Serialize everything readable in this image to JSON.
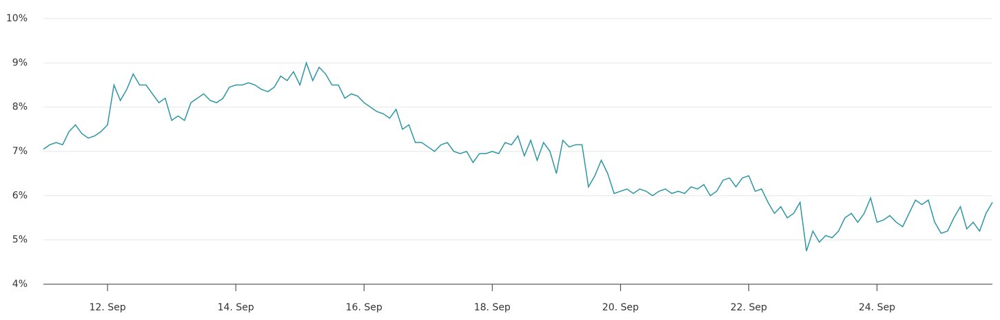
{
  "chart_data": {
    "type": "line",
    "x": [
      11.0,
      11.1,
      11.2,
      11.3,
      11.4,
      11.5,
      11.6,
      11.7,
      11.8,
      11.9,
      12.0,
      12.1,
      12.2,
      12.3,
      12.4,
      12.5,
      12.6,
      12.7,
      12.8,
      12.9,
      13.0,
      13.1,
      13.2,
      13.3,
      13.4,
      13.5,
      13.6,
      13.7,
      13.8,
      13.9,
      14.0,
      14.1,
      14.2,
      14.3,
      14.4,
      14.5,
      14.6,
      14.7,
      14.8,
      14.9,
      15.0,
      15.1,
      15.2,
      15.3,
      15.4,
      15.5,
      15.6,
      15.7,
      15.8,
      15.9,
      16.0,
      16.1,
      16.2,
      16.3,
      16.4,
      16.5,
      16.6,
      16.7,
      16.8,
      16.9,
      17.0,
      17.1,
      17.2,
      17.3,
      17.4,
      17.5,
      17.6,
      17.7,
      17.8,
      17.9,
      18.0,
      18.1,
      18.2,
      18.3,
      18.4,
      18.5,
      18.6,
      18.7,
      18.8,
      18.9,
      19.0,
      19.1,
      19.2,
      19.3,
      19.4,
      19.5,
      19.6,
      19.7,
      19.8,
      19.9,
      20.0,
      20.1,
      20.2,
      20.3,
      20.4,
      20.5,
      20.6,
      20.7,
      20.8,
      20.9,
      21.0,
      21.1,
      21.2,
      21.3,
      21.4,
      21.5,
      21.6,
      21.7,
      21.8,
      21.9,
      22.0,
      22.1,
      22.2,
      22.3,
      22.4,
      22.5,
      22.6,
      22.7,
      22.8,
      22.9,
      23.0,
      23.1,
      23.2,
      23.3,
      23.4,
      23.5,
      23.6,
      23.7,
      23.8,
      23.9,
      24.0,
      24.1,
      24.2,
      24.3,
      24.4,
      24.5,
      24.6,
      24.7,
      24.8,
      24.9,
      25.0,
      25.1,
      25.2,
      25.3,
      25.4,
      25.5,
      25.6,
      25.7,
      25.8
    ],
    "series": [
      {
        "color": "#2b95a3",
        "values": [
          7.05,
          7.15,
          7.2,
          7.15,
          7.45,
          7.6,
          7.4,
          7.3,
          7.35,
          7.45,
          7.6,
          8.5,
          8.15,
          8.4,
          8.75,
          8.5,
          8.5,
          8.3,
          8.1,
          8.2,
          7.7,
          7.8,
          7.7,
          8.1,
          8.2,
          8.3,
          8.15,
          8.1,
          8.2,
          8.45,
          8.5,
          8.5,
          8.55,
          8.5,
          8.4,
          8.35,
          8.45,
          8.7,
          8.6,
          8.8,
          8.5,
          9.0,
          8.6,
          8.9,
          8.75,
          8.5,
          8.5,
          8.2,
          8.3,
          8.25,
          8.1,
          8.0,
          7.9,
          7.85,
          7.75,
          7.95,
          7.5,
          7.6,
          7.2,
          7.2,
          7.1,
          7.0,
          7.15,
          7.2,
          7.0,
          6.95,
          7.0,
          6.75,
          6.95,
          6.95,
          7.0,
          6.95,
          7.2,
          7.15,
          7.35,
          6.9,
          7.25,
          6.8,
          7.2,
          7.0,
          6.5,
          7.25,
          7.1,
          7.15,
          7.15,
          6.2,
          6.45,
          6.8,
          6.5,
          6.05,
          6.1,
          6.15,
          6.05,
          6.15,
          6.1,
          6.0,
          6.1,
          6.15,
          6.05,
          6.1,
          6.05,
          6.2,
          6.15,
          6.25,
          6.0,
          6.1,
          6.35,
          6.4,
          6.2,
          6.4,
          6.45,
          6.1,
          6.15,
          5.85,
          5.6,
          5.75,
          5.5,
          5.6,
          5.85,
          4.75,
          5.2,
          4.95,
          5.1,
          5.05,
          5.2,
          5.5,
          5.6,
          5.4,
          5.6,
          5.95,
          5.4,
          5.45,
          5.55,
          5.4,
          5.3,
          5.6,
          5.9,
          5.8,
          5.9,
          5.4,
          5.15,
          5.2,
          5.5,
          5.75,
          5.25,
          5.4,
          5.2,
          5.6,
          5.85
        ]
      }
    ],
    "xlim": [
      11,
      25.8
    ],
    "xticks": [
      {
        "value": 12,
        "label": "12. Sep"
      },
      {
        "value": 14,
        "label": "14. Sep"
      },
      {
        "value": 16,
        "label": "16. Sep"
      },
      {
        "value": 18,
        "label": "18. Sep"
      },
      {
        "value": 20,
        "label": "20. Sep"
      },
      {
        "value": 22,
        "label": "22. Sep"
      },
      {
        "value": 24,
        "label": "24. Sep"
      }
    ],
    "ylim": [
      4,
      10
    ],
    "yticks": [
      {
        "value": 4,
        "label": "4%"
      },
      {
        "value": 5,
        "label": "5%"
      },
      {
        "value": 6,
        "label": "6%"
      },
      {
        "value": 7,
        "label": "7%"
      },
      {
        "value": 8,
        "label": "8%"
      },
      {
        "value": 9,
        "label": "9%"
      },
      {
        "value": 10,
        "label": "10%"
      }
    ],
    "grid": true
  }
}
